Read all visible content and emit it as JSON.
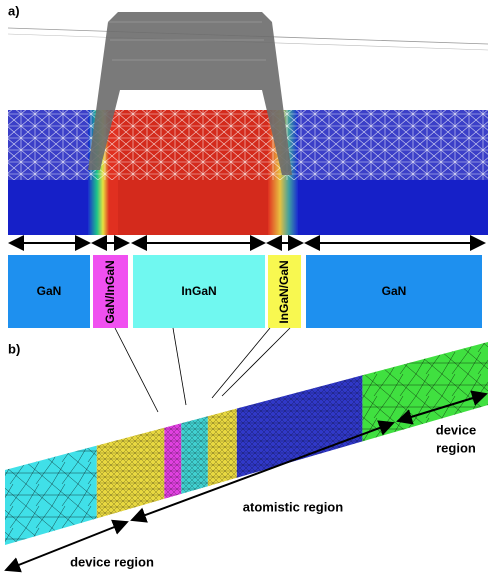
{
  "panel_a": {
    "label": "a)",
    "blocks": [
      "GaN",
      "GaN/InGaN",
      "InGaN",
      "InGaN/GaN",
      "GaN"
    ]
  },
  "panel_b": {
    "label": "b)",
    "regions": {
      "left": "device region",
      "middle": "atomistic region",
      "right": [
        "device",
        "region"
      ]
    }
  }
}
